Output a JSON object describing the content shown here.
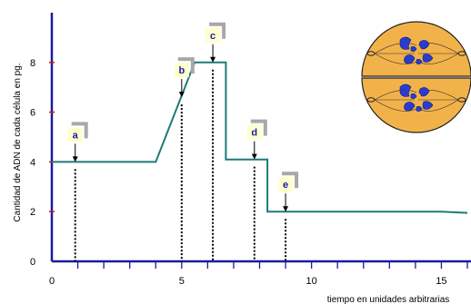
{
  "colors": {
    "line": "#1f7a75",
    "axis": "#1a1aa0",
    "tick_red": "#cc2200",
    "label_box": "#ffffcc",
    "label_shadow": "#a8a8a8",
    "label_text": "#1a1ab0",
    "cell_fill": "#f2b24a",
    "chromosome": "#2a3cd0"
  },
  "chart_data": {
    "type": "line",
    "ylabel": "Cantidad de ADN de cada célula en pg.",
    "xlabel": "tiempo en unidades arbitrarias",
    "xlim": [
      0,
      16
    ],
    "ylim": [
      0,
      10
    ],
    "x_ticks": [
      0,
      5,
      10,
      15
    ],
    "y_ticks": [
      0,
      2,
      4,
      6,
      8
    ],
    "x_minor_ticks": [
      1,
      2,
      3,
      4,
      5,
      6,
      7,
      8,
      9,
      10,
      11,
      12,
      13,
      14,
      15,
      16
    ],
    "series": [
      {
        "x": [
          0,
          4,
          5.5,
          6.7,
          6.7,
          8.3,
          8.3,
          15,
          16
        ],
        "y": [
          4,
          4,
          8,
          8,
          4.1,
          4.1,
          2,
          2,
          1.95
        ]
      }
    ],
    "markers": [
      {
        "label": "a",
        "x": 0.9,
        "y": 4
      },
      {
        "label": "b",
        "x": 5.0,
        "y": 6.6
      },
      {
        "label": "c",
        "x": 6.2,
        "y": 8
      },
      {
        "label": "d",
        "x": 7.8,
        "y": 4.1
      },
      {
        "label": "e",
        "x": 9.0,
        "y": 2
      }
    ],
    "grid": false
  },
  "illustration": {
    "name": "cell-division-diagram",
    "cells": 2
  }
}
